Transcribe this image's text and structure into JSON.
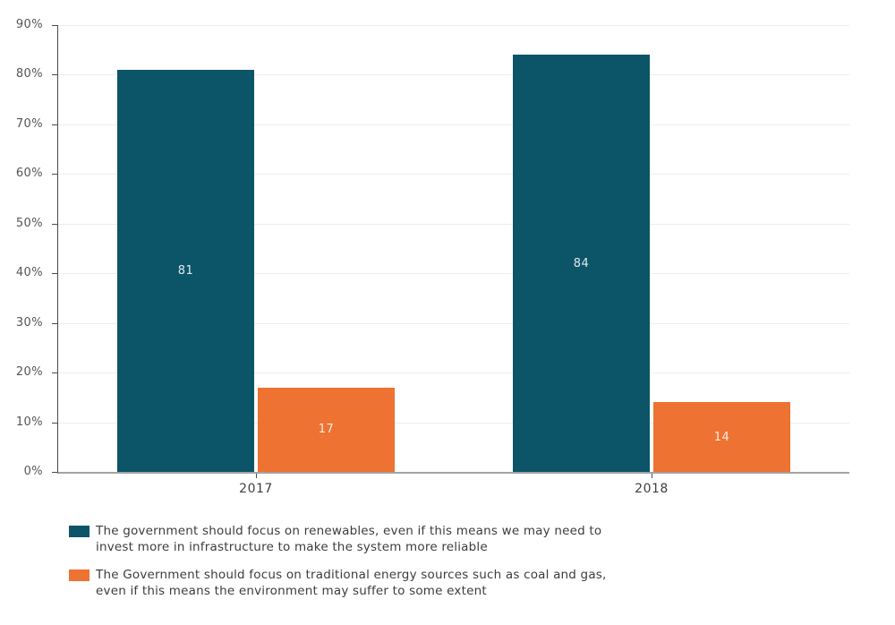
{
  "chart_data": {
    "type": "bar",
    "title": "",
    "xlabel": "",
    "ylabel": "",
    "categories": [
      "2017",
      "2018"
    ],
    "series": [
      {
        "name": "The government should focus on renewables, even if this means we may need to invest more in infrastructure to make the system more reliable",
        "color": "#0C5468",
        "values": [
          81,
          84
        ]
      },
      {
        "name": "The Government should focus on traditional energy sources such as coal and gas, even if this means the environment may suffer to some extent",
        "color": "#EE7231",
        "values": [
          17,
          14
        ]
      }
    ],
    "ylim": [
      0,
      90
    ],
    "yticks": [
      "0%",
      "10%",
      "20%",
      "30%",
      "40%",
      "50%",
      "60%",
      "70%",
      "80%",
      "90%"
    ],
    "grid": true,
    "legend_position": "bottom"
  },
  "legend": {
    "items": [
      {
        "swatch_color": "#0C5468",
        "lines": [
          "The government should focus on renewables, even if this means we may need to",
          "invest more in infrastructure to make the system more reliable"
        ]
      },
      {
        "swatch_color": "#EE7231",
        "lines": [
          "The Government should focus on traditional energy sources such as coal and gas,",
          "even if this means the environment may suffer to some extent"
        ]
      }
    ]
  }
}
